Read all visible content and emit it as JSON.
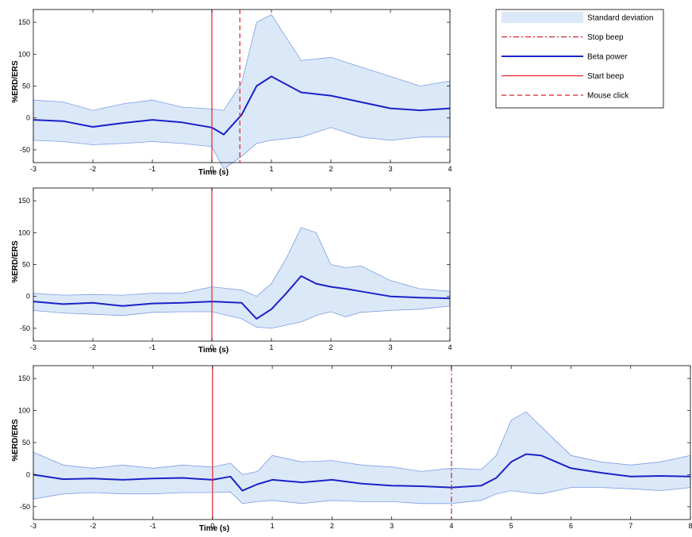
{
  "chart_data": [
    {
      "type": "line",
      "xlabel": "Time (s)",
      "ylabel": "%ERD/ERS",
      "xlim": [
        -3,
        4
      ],
      "ylim": [
        -70,
        170
      ],
      "xticks": [
        -3,
        -2,
        -1,
        0,
        1,
        2,
        3,
        4
      ],
      "yticks": [
        -50,
        0,
        50,
        100,
        150
      ],
      "grid": false,
      "legend_position": "right, outside plot",
      "series": [
        {
          "name": "Beta power",
          "x": [
            -3,
            -2.5,
            -2,
            -1.5,
            -1,
            -0.5,
            0,
            0.2,
            0.5,
            0.75,
            1,
            1.5,
            2,
            2.5,
            3,
            3.5,
            4
          ],
          "values": [
            -3,
            -5,
            -14,
            -8,
            -3,
            -7,
            -15,
            -26,
            5,
            50,
            65,
            40,
            35,
            25,
            15,
            12,
            15
          ]
        },
        {
          "name": "Standard deviation",
          "x": [
            -3,
            -2.5,
            -2,
            -1.5,
            -1,
            -0.5,
            0,
            0.2,
            0.5,
            0.75,
            1,
            1.5,
            2,
            2.5,
            3,
            3.5,
            4
          ],
          "upper": [
            28,
            25,
            12,
            22,
            28,
            17,
            14,
            12,
            55,
            150,
            162,
            90,
            95,
            80,
            65,
            50,
            58
          ],
          "lower": [
            -35,
            -37,
            -42,
            -40,
            -37,
            -40,
            -45,
            -80,
            -60,
            -40,
            -35,
            -30,
            -15,
            -30,
            -35,
            -30,
            -30
          ]
        }
      ],
      "vlines": [
        {
          "name": "Start beep",
          "x": 0,
          "color": "#e8212b",
          "style": "solid"
        },
        {
          "name": "Mouse click",
          "x": 0.47,
          "color": "#d1232a",
          "style": "dashed"
        }
      ],
      "legend": [
        {
          "label": "Standard deviation",
          "kind": "fill",
          "color": "#dbe8f8"
        },
        {
          "label": "Stop beep",
          "kind": "dashdot",
          "color": "#d1232a"
        },
        {
          "label": "Beta power",
          "kind": "line",
          "color": "#1a22c8"
        },
        {
          "label": "Start beep",
          "kind": "line",
          "color": "#e8212b"
        },
        {
          "label": "Mouse click",
          "kind": "dashed",
          "color": "#d1232a"
        }
      ]
    },
    {
      "type": "line",
      "xlabel": "Time (s)",
      "ylabel": "%ERD/ERS",
      "xlim": [
        -3,
        4
      ],
      "ylim": [
        -70,
        170
      ],
      "xticks": [
        -3,
        -2,
        -1,
        0,
        1,
        2,
        3,
        4
      ],
      "yticks": [
        -50,
        0,
        50,
        100,
        150
      ],
      "grid": false,
      "series": [
        {
          "name": "Beta power",
          "x": [
            -3,
            -2.5,
            -2,
            -1.5,
            -1,
            -0.5,
            0,
            0.5,
            0.75,
            1,
            1.25,
            1.5,
            1.75,
            2,
            2.25,
            2.5,
            3,
            3.5,
            4
          ],
          "values": [
            -8,
            -12,
            -10,
            -15,
            -11,
            -10,
            -8,
            -10,
            -35,
            -20,
            5,
            32,
            20,
            15,
            12,
            8,
            0,
            -2,
            -3
          ]
        },
        {
          "name": "Standard deviation",
          "x": [
            -3,
            -2.5,
            -2,
            -1.5,
            -1,
            -0.5,
            0,
            0.5,
            0.75,
            1,
            1.25,
            1.5,
            1.75,
            2,
            2.25,
            2.5,
            3,
            3.5,
            4
          ],
          "upper": [
            5,
            2,
            3,
            2,
            5,
            5,
            15,
            10,
            0,
            20,
            60,
            108,
            100,
            50,
            45,
            48,
            25,
            12,
            8
          ],
          "lower": [
            -22,
            -26,
            -28,
            -30,
            -25,
            -24,
            -24,
            -35,
            -48,
            -50,
            -45,
            -40,
            -30,
            -24,
            -32,
            -25,
            -22,
            -20,
            -15
          ]
        }
      ],
      "vlines": [
        {
          "name": "Start beep",
          "x": 0,
          "color": "#e8212b",
          "style": "solid"
        }
      ]
    },
    {
      "type": "line",
      "xlabel": "Time (s)",
      "ylabel": "%ERD/ERS",
      "xlim": [
        -3,
        8
      ],
      "ylim": [
        -70,
        170
      ],
      "xticks": [
        -3,
        -2,
        -1,
        0,
        1,
        2,
        3,
        4,
        5,
        6,
        7,
        8
      ],
      "yticks": [
        -50,
        0,
        50,
        100,
        150
      ],
      "grid": false,
      "series": [
        {
          "name": "Beta power",
          "x": [
            -3,
            -2.5,
            -2,
            -1.5,
            -1,
            -0.5,
            0,
            0.3,
            0.5,
            0.75,
            1,
            1.5,
            2,
            2.5,
            3,
            3.5,
            4,
            4.5,
            4.75,
            5,
            5.25,
            5.5,
            6,
            6.5,
            7,
            7.5,
            8
          ],
          "values": [
            0,
            -7,
            -6,
            -8,
            -6,
            -5,
            -8,
            -3,
            -25,
            -15,
            -8,
            -12,
            -8,
            -14,
            -17,
            -18,
            -20,
            -17,
            -5,
            20,
            32,
            30,
            10,
            3,
            -3,
            -2,
            -3
          ]
        },
        {
          "name": "Standard deviation",
          "x": [
            -3,
            -2.5,
            -2,
            -1.5,
            -1,
            -0.5,
            0,
            0.3,
            0.5,
            0.75,
            1,
            1.5,
            2,
            2.5,
            3,
            3.5,
            4,
            4.5,
            4.75,
            5,
            5.25,
            5.5,
            6,
            6.5,
            7,
            7.5,
            8
          ],
          "upper": [
            35,
            15,
            10,
            15,
            10,
            15,
            12,
            18,
            0,
            5,
            30,
            20,
            22,
            15,
            12,
            5,
            10,
            8,
            30,
            85,
            98,
            75,
            30,
            20,
            15,
            20,
            30
          ],
          "lower": [
            -38,
            -30,
            -28,
            -30,
            -30,
            -28,
            -28,
            -27,
            -45,
            -42,
            -40,
            -45,
            -40,
            -42,
            -42,
            -45,
            -45,
            -40,
            -30,
            -25,
            -28,
            -30,
            -20,
            -20,
            -22,
            -25,
            -20
          ]
        }
      ],
      "vlines": [
        {
          "name": "Start beep",
          "x": 0,
          "color": "#e8212b",
          "style": "solid"
        },
        {
          "name": "Stop beep",
          "x": 4,
          "color": "#d1232a",
          "style": "dashdot"
        }
      ]
    }
  ]
}
